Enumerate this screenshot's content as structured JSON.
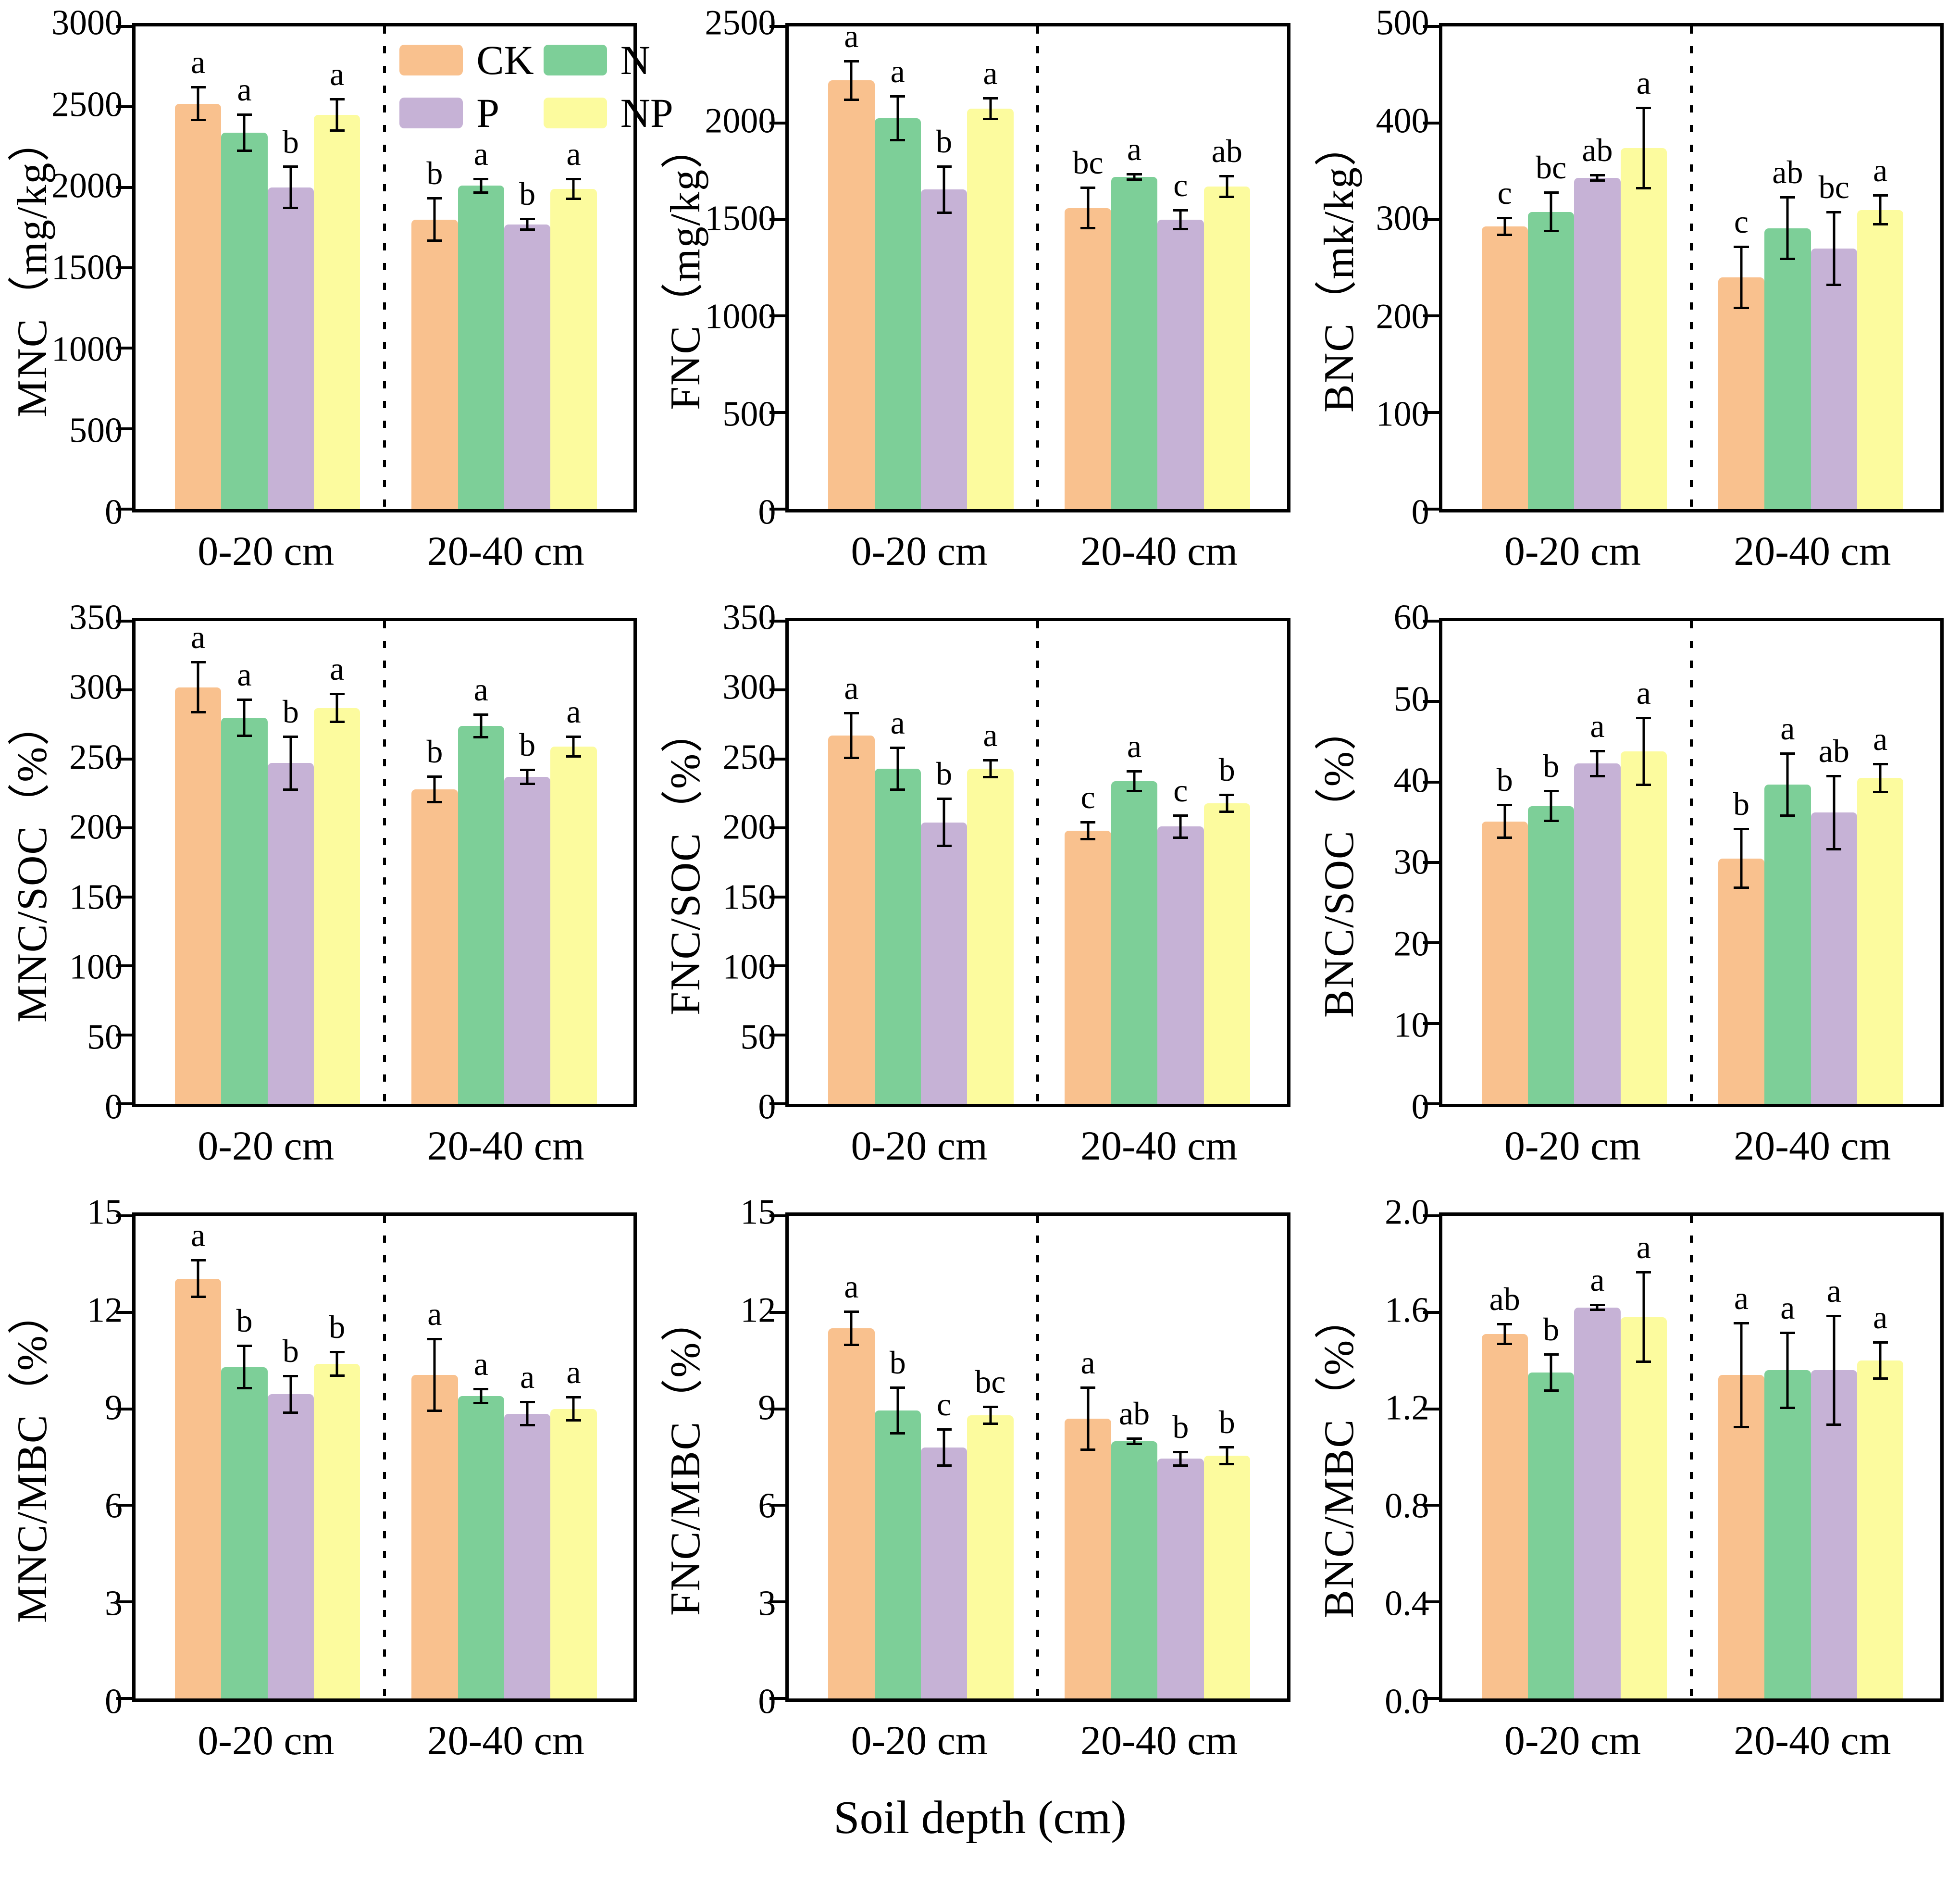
{
  "figure": {
    "xlabel": "Soil depth (cm)",
    "background": "#ffffff",
    "frame_color": "#000000"
  },
  "legend": {
    "position": "top-right-inside-first-chart",
    "items": [
      {
        "label": "CK",
        "color": "#F9C18E"
      },
      {
        "label": "N",
        "color": "#7DCF98"
      },
      {
        "label": "P",
        "color": "#C6B2D6"
      },
      {
        "label": "NP",
        "color": "#FCFB9E"
      }
    ]
  },
  "chart_data": [
    {
      "id": "MNC",
      "type": "bar",
      "ylabel": "MNC（mg/kg）",
      "ylim": [
        0,
        3000
      ],
      "yticks": [
        "0",
        "500",
        "1000",
        "1500",
        "2000",
        "2500",
        "3000"
      ],
      "categories": [
        "0-20 cm",
        "20-40 cm"
      ],
      "grid": false,
      "legend_visible": true,
      "series": [
        {
          "name": "CK",
          "values": [
            2520,
            1800
          ],
          "errors": [
            110,
            140
          ],
          "letters": [
            "a",
            "b"
          ]
        },
        {
          "name": "N",
          "values": [
            2340,
            2010
          ],
          "errors": [
            120,
            50
          ],
          "letters": [
            "a",
            "a"
          ]
        },
        {
          "name": "P",
          "values": [
            2000,
            1770
          ],
          "errors": [
            135,
            40
          ],
          "letters": [
            "b",
            "b"
          ]
        },
        {
          "name": "NP",
          "values": [
            2450,
            1990
          ],
          "errors": [
            105,
            70
          ],
          "letters": [
            "a",
            "a"
          ]
        }
      ]
    },
    {
      "id": "FNC",
      "type": "bar",
      "ylabel": "FNC（mg/kg）",
      "ylim": [
        0,
        2500
      ],
      "yticks": [
        "0",
        "500",
        "1000",
        "1500",
        "2000",
        "2500"
      ],
      "categories": [
        "0-20 cm",
        "20-40 cm"
      ],
      "grid": false,
      "legend_visible": false,
      "series": [
        {
          "name": "CK",
          "values": [
            2220,
            1560
          ],
          "errors": [
            105,
            110
          ],
          "letters": [
            "a",
            "bc"
          ]
        },
        {
          "name": "N",
          "values": [
            2025,
            1720
          ],
          "errors": [
            120,
            20
          ],
          "letters": [
            "a",
            "a"
          ]
        },
        {
          "name": "P",
          "values": [
            1655,
            1500
          ],
          "errors": [
            125,
            55
          ],
          "letters": [
            "b",
            "c"
          ]
        },
        {
          "name": "NP",
          "values": [
            2075,
            1670
          ],
          "errors": [
            60,
            60
          ],
          "letters": [
            "a",
            "ab"
          ]
        }
      ]
    },
    {
      "id": "BNC",
      "type": "bar",
      "ylabel": "BNC（mk/kg）",
      "ylim": [
        0,
        500
      ],
      "yticks": [
        "0",
        "100",
        "200",
        "300",
        "400",
        "500"
      ],
      "categories": [
        "0-20 cm",
        "20-40 cm"
      ],
      "grid": false,
      "legend_visible": false,
      "series": [
        {
          "name": "CK",
          "values": [
            293,
            240
          ],
          "errors": [
            10,
            33
          ],
          "letters": [
            "c",
            "c"
          ]
        },
        {
          "name": "N",
          "values": [
            308,
            291
          ],
          "errors": [
            21,
            33
          ],
          "letters": [
            "bc",
            "ab"
          ]
        },
        {
          "name": "P",
          "values": [
            343,
            270
          ],
          "errors": [
            4,
            39
          ],
          "letters": [
            "ab",
            "bc"
          ]
        },
        {
          "name": "NP",
          "values": [
            374,
            310
          ],
          "errors": [
            43,
            16
          ],
          "letters": [
            "a",
            "a"
          ]
        }
      ]
    },
    {
      "id": "MNC_SOC",
      "type": "bar",
      "ylabel": "MNC/SOC（%）",
      "ylim": [
        0,
        350
      ],
      "yticks": [
        "0",
        "50",
        "100",
        "150",
        "200",
        "250",
        "300",
        "350"
      ],
      "categories": [
        "0-20 cm",
        "20-40 cm"
      ],
      "grid": false,
      "legend_visible": false,
      "series": [
        {
          "name": "CK",
          "values": [
            302,
            228
          ],
          "errors": [
            19,
            10
          ],
          "letters": [
            "a",
            "b"
          ]
        },
        {
          "name": "N",
          "values": [
            280,
            274
          ],
          "errors": [
            14,
            9
          ],
          "letters": [
            "a",
            "a"
          ]
        },
        {
          "name": "P",
          "values": [
            247,
            237
          ],
          "errors": [
            20,
            6
          ],
          "letters": [
            "b",
            "b"
          ]
        },
        {
          "name": "NP",
          "values": [
            287,
            259
          ],
          "errors": [
            11,
            8
          ],
          "letters": [
            "a",
            "a"
          ]
        }
      ]
    },
    {
      "id": "FNC_SOC",
      "type": "bar",
      "ylabel": "FNC/SOC（%）",
      "ylim": [
        0,
        350
      ],
      "yticks": [
        "0",
        "50",
        "100",
        "150",
        "200",
        "250",
        "300",
        "350"
      ],
      "categories": [
        "0-20 cm",
        "20-40 cm"
      ],
      "grid": false,
      "legend_visible": false,
      "series": [
        {
          "name": "CK",
          "values": [
            267,
            198
          ],
          "errors": [
            17,
            7
          ],
          "letters": [
            "a",
            "c"
          ]
        },
        {
          "name": "N",
          "values": [
            243,
            234
          ],
          "errors": [
            16,
            8
          ],
          "letters": [
            "a",
            "a"
          ]
        },
        {
          "name": "P",
          "values": [
            204,
            201
          ],
          "errors": [
            18,
            9
          ],
          "letters": [
            "b",
            "c"
          ]
        },
        {
          "name": "NP",
          "values": [
            243,
            218
          ],
          "errors": [
            7,
            7
          ],
          "letters": [
            "a",
            "b"
          ]
        }
      ]
    },
    {
      "id": "BNC_SOC",
      "type": "bar",
      "ylabel": "BNC/SOC（%）",
      "ylim": [
        0,
        60
      ],
      "yticks": [
        "0",
        "10",
        "20",
        "30",
        "40",
        "50",
        "60"
      ],
      "categories": [
        "0-20 cm",
        "20-40 cm"
      ],
      "grid": false,
      "legend_visible": false,
      "series": [
        {
          "name": "CK",
          "values": [
            35.1,
            30.5
          ],
          "errors": [
            2.2,
            3.8
          ],
          "letters": [
            "b",
            "b"
          ]
        },
        {
          "name": "N",
          "values": [
            37.0,
            39.7
          ],
          "errors": [
            2.0,
            4.0
          ],
          "letters": [
            "b",
            "a"
          ]
        },
        {
          "name": "P",
          "values": [
            42.3,
            36.2
          ],
          "errors": [
            1.7,
            4.7
          ],
          "letters": [
            "a",
            "ab"
          ]
        },
        {
          "name": "NP",
          "values": [
            43.8,
            40.5
          ],
          "errors": [
            4.3,
            1.9
          ],
          "letters": [
            "a",
            "a"
          ]
        }
      ]
    },
    {
      "id": "MNC_MBC",
      "type": "bar",
      "ylabel": "MNC/MBC（%）",
      "ylim": [
        0,
        15
      ],
      "yticks": [
        "0",
        "3",
        "6",
        "9",
        "12",
        "15"
      ],
      "categories": [
        "0-20 cm",
        "20-40 cm"
      ],
      "grid": false,
      "legend_visible": false,
      "series": [
        {
          "name": "CK",
          "values": [
            13.05,
            10.05
          ],
          "errors": [
            0.6,
            1.15
          ],
          "letters": [
            "a",
            "a"
          ]
        },
        {
          "name": "N",
          "values": [
            10.3,
            9.4
          ],
          "errors": [
            0.7,
            0.25
          ],
          "letters": [
            "b",
            "a"
          ]
        },
        {
          "name": "P",
          "values": [
            9.45,
            8.85
          ],
          "errors": [
            0.6,
            0.4
          ],
          "letters": [
            "b",
            "a"
          ]
        },
        {
          "name": "NP",
          "values": [
            10.4,
            9.0
          ],
          "errors": [
            0.4,
            0.4
          ],
          "letters": [
            "b",
            "a"
          ]
        }
      ]
    },
    {
      "id": "FNC_MBC",
      "type": "bar",
      "ylabel": "FNC/MBC（%）",
      "ylim": [
        0,
        15
      ],
      "yticks": [
        "0",
        "3",
        "6",
        "9",
        "12",
        "15"
      ],
      "categories": [
        "0-20 cm",
        "20-40 cm"
      ],
      "grid": false,
      "legend_visible": false,
      "series": [
        {
          "name": "CK",
          "values": [
            11.5,
            8.7
          ],
          "errors": [
            0.55,
            1.0
          ],
          "letters": [
            "a",
            "a"
          ]
        },
        {
          "name": "N",
          "values": [
            8.95,
            8.0
          ],
          "errors": [
            0.75,
            0.12
          ],
          "letters": [
            "b",
            "ab"
          ]
        },
        {
          "name": "P",
          "values": [
            7.8,
            7.45
          ],
          "errors": [
            0.6,
            0.25
          ],
          "letters": [
            "c",
            "b"
          ]
        },
        {
          "name": "NP",
          "values": [
            8.8,
            7.55
          ],
          "errors": [
            0.3,
            0.3
          ],
          "letters": [
            "bc",
            "b"
          ]
        }
      ]
    },
    {
      "id": "BNC_MBC",
      "type": "bar",
      "ylabel": "BNC/MBC（%）",
      "ylim": [
        0,
        2.0
      ],
      "yticks": [
        "0.0",
        "0.4",
        "0.8",
        "1.2",
        "1.6",
        "2.0"
      ],
      "categories": [
        "0-20 cm",
        "20-40 cm"
      ],
      "grid": false,
      "legend_visible": false,
      "series": [
        {
          "name": "CK",
          "values": [
            1.51,
            1.34
          ],
          "errors": [
            0.045,
            0.22
          ],
          "letters": [
            "ab",
            "a"
          ]
        },
        {
          "name": "N",
          "values": [
            1.35,
            1.36
          ],
          "errors": [
            0.08,
            0.16
          ],
          "letters": [
            "b",
            "a"
          ]
        },
        {
          "name": "P",
          "values": [
            1.62,
            1.36
          ],
          "errors": [
            0.015,
            0.23
          ],
          "letters": [
            "a",
            "a"
          ]
        },
        {
          "name": "NP",
          "values": [
            1.58,
            1.4
          ],
          "errors": [
            0.19,
            0.08
          ],
          "letters": [
            "a",
            "a"
          ]
        }
      ]
    }
  ]
}
